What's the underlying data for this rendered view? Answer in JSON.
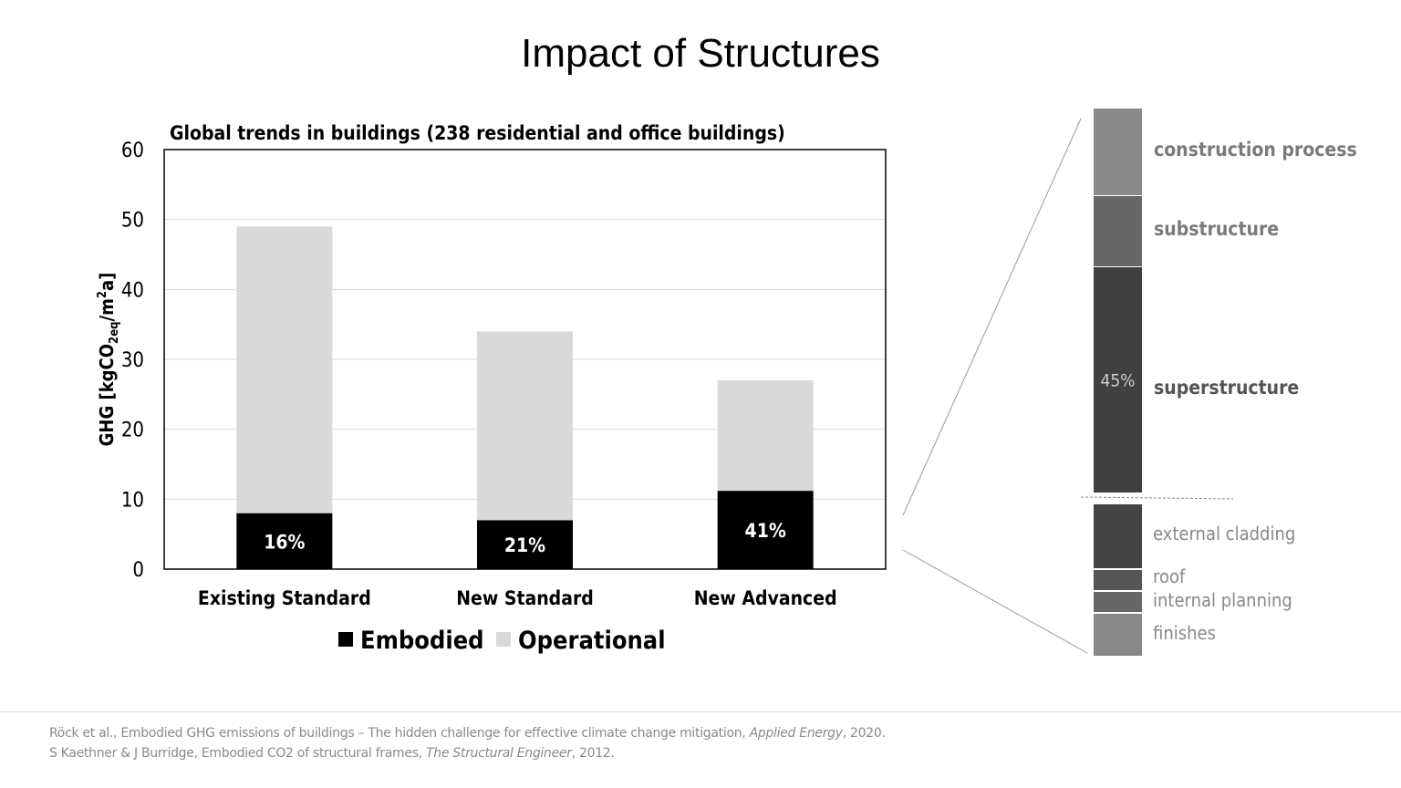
{
  "slide": {
    "title": "Impact of Structures"
  },
  "chart_data": {
    "type": "bar",
    "stacked": true,
    "title": "Global trends in buildings (238 residential and office buildings)",
    "ylabel_main": "GHG [kgCO",
    "ylabel_sub": "2eq",
    "ylabel_mid": "/m",
    "ylabel_sup": "2",
    "ylabel_end": "a]",
    "ylim": [
      0,
      60
    ],
    "yticks": [
      0,
      10,
      20,
      30,
      40,
      50,
      60
    ],
    "grid": true,
    "categories": [
      "Existing Standard",
      "New Standard",
      "New Advanced"
    ],
    "series": [
      {
        "name": "Embodied",
        "color": "#000000",
        "values": [
          8,
          7,
          11.2
        ]
      },
      {
        "name": "Operational",
        "color": "#d9d9d9",
        "values": [
          41,
          27,
          15.8
        ]
      }
    ],
    "data_labels": [
      "16%",
      "21%",
      "41%"
    ],
    "legend_position": "bottom"
  },
  "breakdown": {
    "segments": [
      {
        "label": "construction process",
        "color": "#8a8a8a",
        "bold": true,
        "value_label": ""
      },
      {
        "label": "substructure",
        "color": "#666666",
        "bold": true,
        "value_label": ""
      },
      {
        "label": "superstructure",
        "color": "#404040",
        "bold": true,
        "value_label": "45%"
      },
      {
        "label": "external cladding",
        "color": "#444444",
        "bold": false,
        "value_label": ""
      },
      {
        "label": "roof",
        "color": "#555555",
        "bold": false,
        "value_label": ""
      },
      {
        "label": "internal planning",
        "color": "#666666",
        "bold": false,
        "value_label": ""
      },
      {
        "label": "finishes",
        "color": "#888888",
        "bold": false,
        "value_label": ""
      }
    ]
  },
  "citations": {
    "line1_pre": "Röck et al., Embodied GHG emissions of buildings – The hidden challenge for effective climate change mitigation, ",
    "line1_journal": "Applied Energy",
    "line1_post": ", 2020.",
    "line2_pre": "S Kaethner & J Burridge, Embodied CO2 of structural frames, ",
    "line2_journal": "The Structural Engineer",
    "line2_post": ", 2012."
  }
}
